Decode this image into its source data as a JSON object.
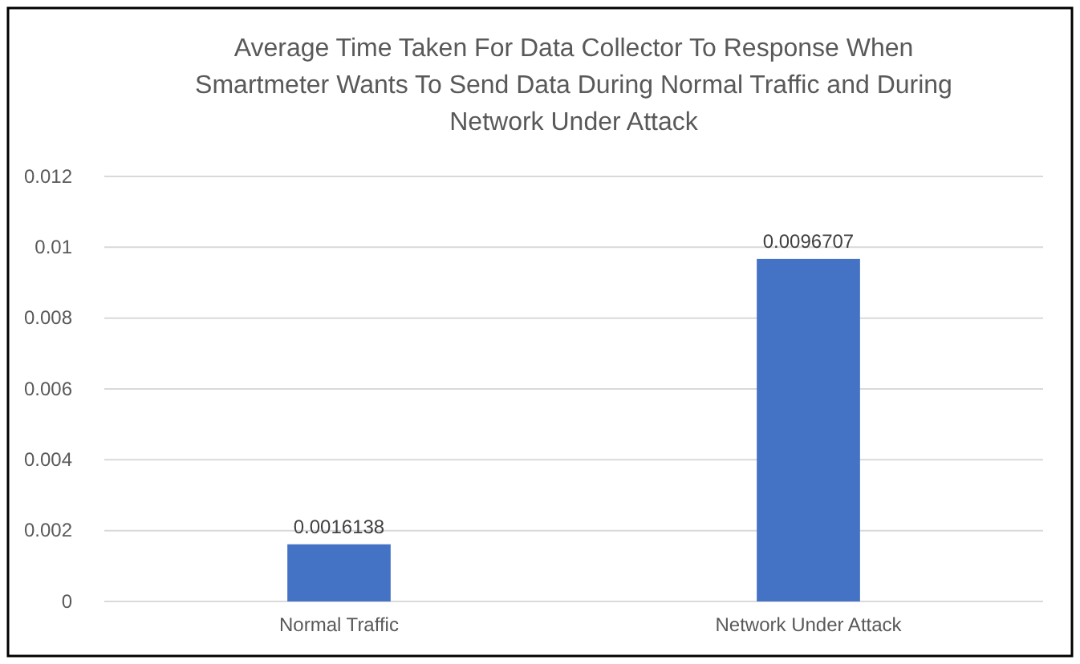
{
  "chart_data": {
    "type": "bar",
    "title": "Average Time Taken For Data Collector To Response When Smartmeter Wants To Send Data During Normal Traffic and During Network Under Attack",
    "categories": [
      "Normal Traffic",
      "Network Under Attack"
    ],
    "values": [
      0.0016138,
      0.0096707
    ],
    "color": "#4472c4",
    "ylim": [
      0,
      0.012
    ],
    "yticks": [
      0,
      0.002,
      0.004,
      0.006,
      0.008,
      0.01,
      0.012
    ],
    "grid": "y",
    "data_labels": true
  }
}
